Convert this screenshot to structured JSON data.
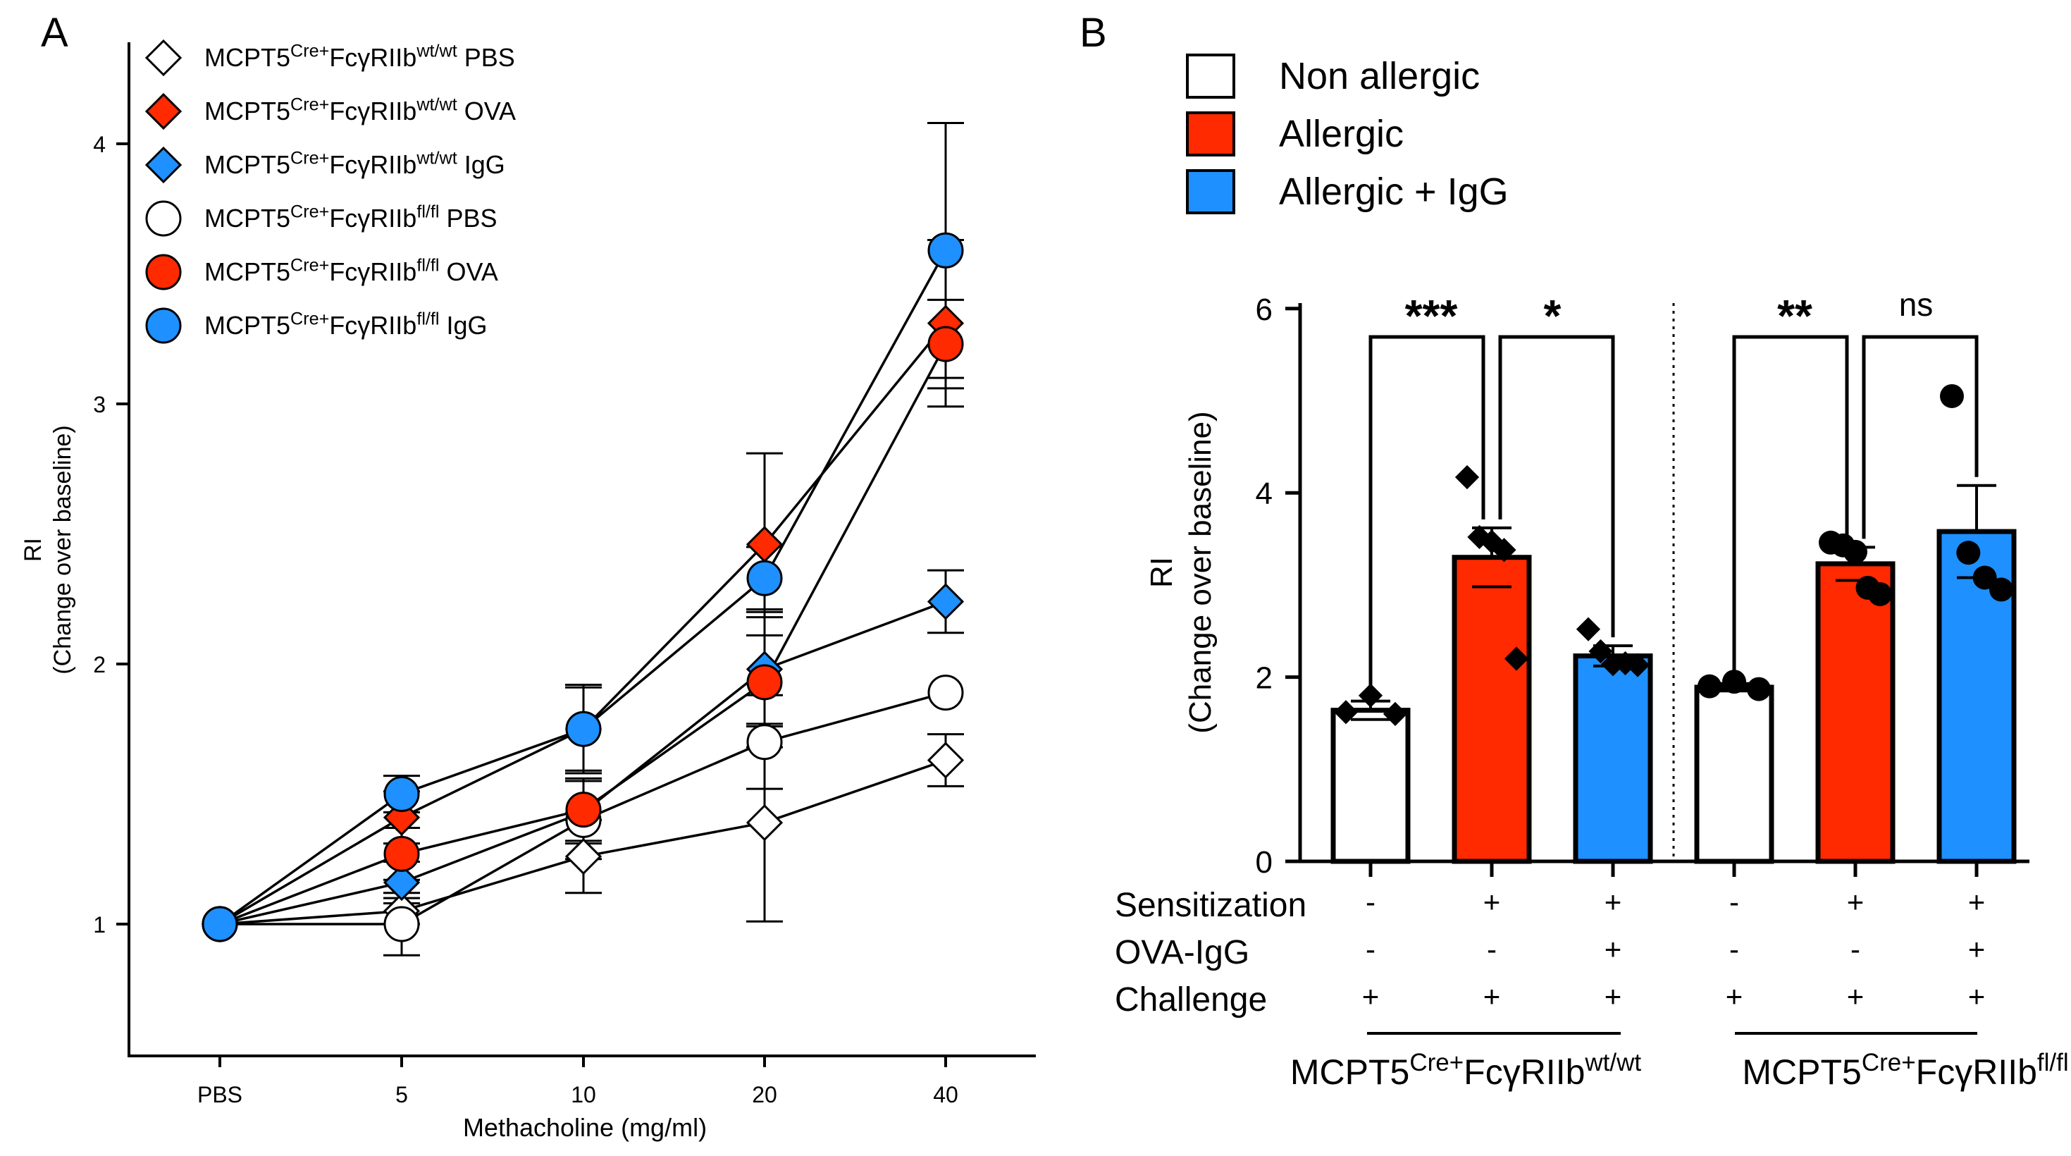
{
  "panel_labels": {
    "a": "A",
    "b": "B"
  },
  "chart_data": [
    {
      "type": "line",
      "title": "",
      "xlabel": "Methacholine (mg/ml)",
      "ylabel": "RI",
      "ylabel2": "(Change over baseline)",
      "categories": [
        "PBS",
        "5",
        "10",
        "20",
        "40"
      ],
      "yticks": [
        1,
        2,
        3,
        4
      ],
      "ylim": [
        0.5,
        4.5
      ],
      "legend_position": "top-left",
      "series": [
        {
          "name": "PBS",
          "genotype": "MCPT5Cre+FcγRIIbwt/wt",
          "sup1": "Cre+",
          "sup2": "wt/wt",
          "marker": "diamond",
          "color": "#ffffff",
          "values": [
            1.0,
            1.05,
            1.26,
            1.39,
            1.63
          ],
          "errors": [
            0.0,
            0.05,
            0.14,
            0.38,
            0.1
          ]
        },
        {
          "name": "OVA",
          "genotype": "MCPT5Cre+FcγRIIbwt/wt",
          "sup1": "Cre+",
          "sup2": "wt/wt",
          "marker": "diamond",
          "color": "#ff2a00",
          "values": [
            1.0,
            1.41,
            1.75,
            2.46,
            3.31
          ],
          "errors": [
            0.0,
            0.1,
            0.17,
            0.35,
            0.32
          ]
        },
        {
          "name": "IgG",
          "genotype": "MCPT5Cre+FcγRIIbwt/wt",
          "sup1": "Cre+",
          "sup2": "wt/wt",
          "marker": "diamond",
          "color": "#1e90ff",
          "values": [
            1.0,
            1.16,
            1.43,
            1.98,
            2.24
          ],
          "errors": [
            0.0,
            0.08,
            0.12,
            0.22,
            0.12
          ]
        },
        {
          "name": "PBS",
          "genotype": "MCPT5Cre+FcγRIIbfl/fl",
          "sup1": "Cre+",
          "sup2": "fl/fl",
          "marker": "circle",
          "color": "#ffffff",
          "values": [
            1.0,
            1.0,
            1.4,
            1.7,
            1.89
          ],
          "errors": [
            0.0,
            0.12,
            0.15,
            0.18,
            0.0
          ]
        },
        {
          "name": "OVA",
          "genotype": "MCPT5Cre+FcγRIIbfl/fl",
          "sup1": "Cre+",
          "sup2": "fl/fl",
          "marker": "circle",
          "color": "#ff2a00",
          "values": [
            1.0,
            1.27,
            1.44,
            1.93,
            3.23
          ],
          "errors": [
            0.0,
            0.1,
            0.12,
            0.25,
            0.17
          ]
        },
        {
          "name": "IgG",
          "genotype": "MCPT5Cre+FcγRIIbfl/fl",
          "sup1": "Cre+",
          "sup2": "fl/fl",
          "marker": "circle",
          "color": "#1e90ff",
          "values": [
            1.0,
            1.5,
            1.75,
            2.33,
            3.59
          ],
          "errors": [
            0.0,
            0.07,
            0.16,
            0.12,
            0.49
          ]
        }
      ]
    },
    {
      "type": "bar",
      "title": "",
      "ylabel": "RI",
      "ylabel2": "(Change over baseline)",
      "yticks": [
        0,
        2,
        4,
        6
      ],
      "ylim": [
        0,
        6
      ],
      "legend_position": "top-left",
      "legend": [
        {
          "label": "Non allergic",
          "color": "#ffffff"
        },
        {
          "label": "Allergic",
          "color": "#ff2a00"
        },
        {
          "label": "Allergic + IgG",
          "color": "#1e90ff"
        }
      ],
      "bars": [
        {
          "group": "wt",
          "condition": "Non allergic",
          "color": "#ffffff",
          "value": 1.64,
          "sem": 0.1,
          "marker": "diamond",
          "points": [
            1.62,
            1.8,
            1.6
          ]
        },
        {
          "group": "wt",
          "condition": "Allergic",
          "color": "#ff2a00",
          "value": 3.3,
          "sem": 0.32,
          "marker": "diamond",
          "points": [
            4.17,
            3.52,
            3.47,
            3.38,
            2.2
          ]
        },
        {
          "group": "wt",
          "condition": "Allergic + IgG",
          "color": "#1e90ff",
          "value": 2.23,
          "sem": 0.11,
          "marker": "diamond",
          "points": [
            2.52,
            2.28,
            2.14,
            2.15,
            2.13
          ]
        },
        {
          "group": "fl",
          "condition": "Non allergic",
          "color": "#ffffff",
          "value": 1.89,
          "sem": 0.04,
          "marker": "circle",
          "points": [
            1.9,
            1.95,
            1.87
          ]
        },
        {
          "group": "fl",
          "condition": "Allergic",
          "color": "#ff2a00",
          "value": 3.23,
          "sem": 0.18,
          "marker": "circle",
          "points": [
            3.46,
            3.43,
            3.36,
            2.97,
            2.9
          ]
        },
        {
          "group": "fl",
          "condition": "Allergic + IgG",
          "color": "#1e90ff",
          "value": 3.58,
          "sem": 0.5,
          "marker": "circle",
          "points": [
            5.05,
            3.35,
            3.08,
            2.95
          ]
        }
      ],
      "significance": [
        {
          "from": 0,
          "to": 1,
          "label": "***"
        },
        {
          "from": 1,
          "to": 2,
          "label": "*"
        },
        {
          "from": 3,
          "to": 4,
          "label": "**"
        },
        {
          "from": 4,
          "to": 5,
          "label": "ns"
        }
      ],
      "treatment_rows": [
        {
          "label": "Sensitization",
          "values": [
            "-",
            "+",
            "+",
            "-",
            "+",
            "+"
          ]
        },
        {
          "label": "OVA-IgG",
          "values": [
            "-",
            "-",
            "+",
            "-",
            "-",
            "+"
          ]
        },
        {
          "label": "Challenge",
          "values": [
            "+",
            "+",
            "+",
            "+",
            "+",
            "+"
          ]
        }
      ],
      "groups": [
        {
          "id": "wt",
          "base": "MCPT5",
          "sup1": "Cre+",
          "mid": "FcγRIIb",
          "sup2": "wt/wt"
        },
        {
          "id": "fl",
          "base": "MCPT5",
          "sup1": "Cre+",
          "mid": "FcγRIIb",
          "sup2": "fl/fl"
        }
      ]
    }
  ]
}
